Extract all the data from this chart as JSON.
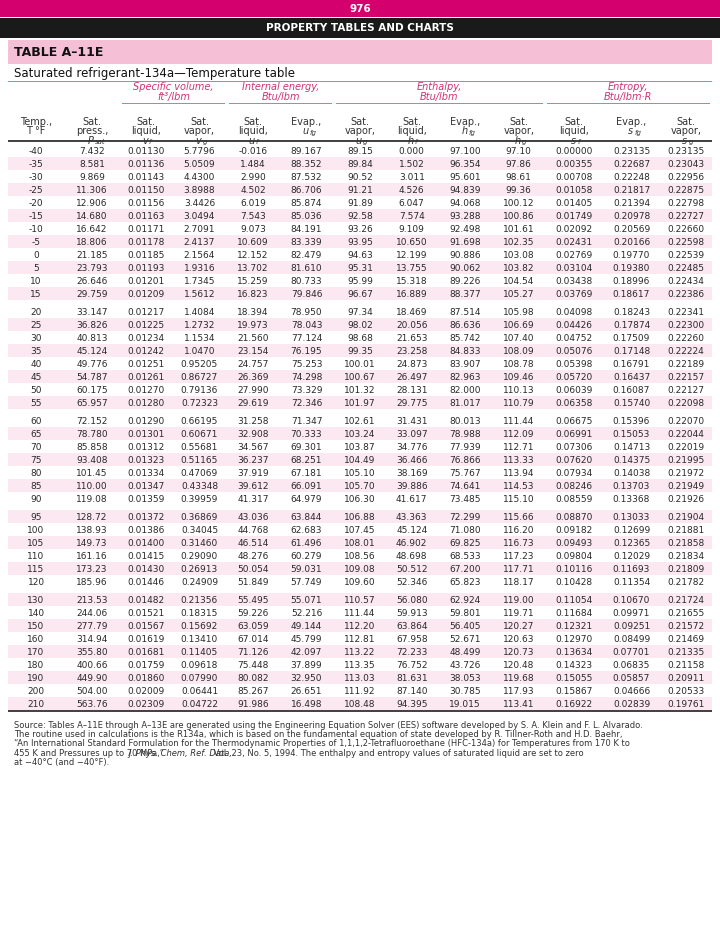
{
  "page_number": "976",
  "header_title": "PROPERTY TABLES AND CHARTS",
  "table_id": "TABLE A–11E",
  "table_subtitle": "Saturated refrigerant-134a—Temperature table",
  "data": [
    [
      "-40",
      "7.432",
      "0.01130",
      "5.7796",
      "-0.016",
      "89.167",
      "89.15",
      "0.000",
      "97.100",
      "97.10",
      "0.00000",
      "0.23135",
      "0.23135"
    ],
    [
      "-35",
      "8.581",
      "0.01136",
      "5.0509",
      "1.484",
      "88.352",
      "89.84",
      "1.502",
      "96.354",
      "97.86",
      "0.00355",
      "0.22687",
      "0.23043"
    ],
    [
      "-30",
      "9.869",
      "0.01143",
      "4.4300",
      "2.990",
      "87.532",
      "90.52",
      "3.011",
      "95.601",
      "98.61",
      "0.00708",
      "0.22248",
      "0.22956"
    ],
    [
      "-25",
      "11.306",
      "0.01150",
      "3.8988",
      "4.502",
      "86.706",
      "91.21",
      "4.526",
      "94.839",
      "99.36",
      "0.01058",
      "0.21817",
      "0.22875"
    ],
    [
      "-20",
      "12.906",
      "0.01156",
      "3.4426",
      "6.019",
      "85.874",
      "91.89",
      "6.047",
      "94.068",
      "100.12",
      "0.01405",
      "0.21394",
      "0.22798"
    ],
    [
      "-15",
      "14.680",
      "0.01163",
      "3.0494",
      "7.543",
      "85.036",
      "92.58",
      "7.574",
      "93.288",
      "100.86",
      "0.01749",
      "0.20978",
      "0.22727"
    ],
    [
      "-10",
      "16.642",
      "0.01171",
      "2.7091",
      "9.073",
      "84.191",
      "93.26",
      "9.109",
      "92.498",
      "101.61",
      "0.02092",
      "0.20569",
      "0.22660"
    ],
    [
      "-5",
      "18.806",
      "0.01178",
      "2.4137",
      "10.609",
      "83.339",
      "93.95",
      "10.650",
      "91.698",
      "102.35",
      "0.02431",
      "0.20166",
      "0.22598"
    ],
    [
      "0",
      "21.185",
      "0.01185",
      "2.1564",
      "12.152",
      "82.479",
      "94.63",
      "12.199",
      "90.886",
      "103.08",
      "0.02769",
      "0.19770",
      "0.22539"
    ],
    [
      "5",
      "23.793",
      "0.01193",
      "1.9316",
      "13.702",
      "81.610",
      "95.31",
      "13.755",
      "90.062",
      "103.82",
      "0.03104",
      "0.19380",
      "0.22485"
    ],
    [
      "10",
      "26.646",
      "0.01201",
      "1.7345",
      "15.259",
      "80.733",
      "95.99",
      "15.318",
      "89.226",
      "104.54",
      "0.03438",
      "0.18996",
      "0.22434"
    ],
    [
      "15",
      "29.759",
      "0.01209",
      "1.5612",
      "16.823",
      "79.846",
      "96.67",
      "16.889",
      "88.377",
      "105.27",
      "0.03769",
      "0.18617",
      "0.22386"
    ],
    [
      "20",
      "33.147",
      "0.01217",
      "1.4084",
      "18.394",
      "78.950",
      "97.34",
      "18.469",
      "87.514",
      "105.98",
      "0.04098",
      "0.18243",
      "0.22341"
    ],
    [
      "25",
      "36.826",
      "0.01225",
      "1.2732",
      "19.973",
      "78.043",
      "98.02",
      "20.056",
      "86.636",
      "106.69",
      "0.04426",
      "0.17874",
      "0.22300"
    ],
    [
      "30",
      "40.813",
      "0.01234",
      "1.1534",
      "21.560",
      "77.124",
      "98.68",
      "21.653",
      "85.742",
      "107.40",
      "0.04752",
      "0.17509",
      "0.22260"
    ],
    [
      "35",
      "45.124",
      "0.01242",
      "1.0470",
      "23.154",
      "76.195",
      "99.35",
      "23.258",
      "84.833",
      "108.09",
      "0.05076",
      "0.17148",
      "0.22224"
    ],
    [
      "40",
      "49.776",
      "0.01251",
      "0.95205",
      "24.757",
      "75.253",
      "100.01",
      "24.873",
      "83.907",
      "108.78",
      "0.05398",
      "0.16791",
      "0.22189"
    ],
    [
      "45",
      "54.787",
      "0.01261",
      "0.86727",
      "26.369",
      "74.298",
      "100.67",
      "26.497",
      "82.963",
      "109.46",
      "0.05720",
      "0.16437",
      "0.22157"
    ],
    [
      "50",
      "60.175",
      "0.01270",
      "0.79136",
      "27.990",
      "73.329",
      "101.32",
      "28.131",
      "82.000",
      "110.13",
      "0.06039",
      "0.16087",
      "0.22127"
    ],
    [
      "55",
      "65.957",
      "0.01280",
      "0.72323",
      "29.619",
      "72.346",
      "101.97",
      "29.775",
      "81.017",
      "110.79",
      "0.06358",
      "0.15740",
      "0.22098"
    ],
    [
      "60",
      "72.152",
      "0.01290",
      "0.66195",
      "31.258",
      "71.347",
      "102.61",
      "31.431",
      "80.013",
      "111.44",
      "0.06675",
      "0.15396",
      "0.22070"
    ],
    [
      "65",
      "78.780",
      "0.01301",
      "0.60671",
      "32.908",
      "70.333",
      "103.24",
      "33.097",
      "78.988",
      "112.09",
      "0.06991",
      "0.15053",
      "0.22044"
    ],
    [
      "70",
      "85.858",
      "0.01312",
      "0.55681",
      "34.567",
      "69.301",
      "103.87",
      "34.776",
      "77.939",
      "112.71",
      "0.07306",
      "0.14713",
      "0.22019"
    ],
    [
      "75",
      "93.408",
      "0.01323",
      "0.51165",
      "36.237",
      "68.251",
      "104.49",
      "36.466",
      "76.866",
      "113.33",
      "0.07620",
      "0.14375",
      "0.21995"
    ],
    [
      "80",
      "101.45",
      "0.01334",
      "0.47069",
      "37.919",
      "67.181",
      "105.10",
      "38.169",
      "75.767",
      "113.94",
      "0.07934",
      "0.14038",
      "0.21972"
    ],
    [
      "85",
      "110.00",
      "0.01347",
      "0.43348",
      "39.612",
      "66.091",
      "105.70",
      "39.886",
      "74.641",
      "114.53",
      "0.08246",
      "0.13703",
      "0.21949"
    ],
    [
      "90",
      "119.08",
      "0.01359",
      "0.39959",
      "41.317",
      "64.979",
      "106.30",
      "41.617",
      "73.485",
      "115.10",
      "0.08559",
      "0.13368",
      "0.21926"
    ],
    [
      "95",
      "128.72",
      "0.01372",
      "0.36869",
      "43.036",
      "63.844",
      "106.88",
      "43.363",
      "72.299",
      "115.66",
      "0.08870",
      "0.13033",
      "0.21904"
    ],
    [
      "100",
      "138.93",
      "0.01386",
      "0.34045",
      "44.768",
      "62.683",
      "107.45",
      "45.124",
      "71.080",
      "116.20",
      "0.09182",
      "0.12699",
      "0.21881"
    ],
    [
      "105",
      "149.73",
      "0.01400",
      "0.31460",
      "46.514",
      "61.496",
      "108.01",
      "46.902",
      "69.825",
      "116.73",
      "0.09493",
      "0.12365",
      "0.21858"
    ],
    [
      "110",
      "161.16",
      "0.01415",
      "0.29090",
      "48.276",
      "60.279",
      "108.56",
      "48.698",
      "68.533",
      "117.23",
      "0.09804",
      "0.12029",
      "0.21834"
    ],
    [
      "115",
      "173.23",
      "0.01430",
      "0.26913",
      "50.054",
      "59.031",
      "109.08",
      "50.512",
      "67.200",
      "117.71",
      "0.10116",
      "0.11693",
      "0.21809"
    ],
    [
      "120",
      "185.96",
      "0.01446",
      "0.24909",
      "51.849",
      "57.749",
      "109.60",
      "52.346",
      "65.823",
      "118.17",
      "0.10428",
      "0.11354",
      "0.21782"
    ],
    [
      "130",
      "213.53",
      "0.01482",
      "0.21356",
      "55.495",
      "55.071",
      "110.57",
      "56.080",
      "62.924",
      "119.00",
      "0.11054",
      "0.10670",
      "0.21724"
    ],
    [
      "140",
      "244.06",
      "0.01521",
      "0.18315",
      "59.226",
      "52.216",
      "111.44",
      "59.913",
      "59.801",
      "119.71",
      "0.11684",
      "0.09971",
      "0.21655"
    ],
    [
      "150",
      "277.79",
      "0.01567",
      "0.15692",
      "63.059",
      "49.144",
      "112.20",
      "63.864",
      "56.405",
      "120.27",
      "0.12321",
      "0.09251",
      "0.21572"
    ],
    [
      "160",
      "314.94",
      "0.01619",
      "0.13410",
      "67.014",
      "45.799",
      "112.81",
      "67.958",
      "52.671",
      "120.63",
      "0.12970",
      "0.08499",
      "0.21469"
    ],
    [
      "170",
      "355.80",
      "0.01681",
      "0.11405",
      "71.126",
      "42.097",
      "113.22",
      "72.233",
      "48.499",
      "120.73",
      "0.13634",
      "0.07701",
      "0.21335"
    ],
    [
      "180",
      "400.66",
      "0.01759",
      "0.09618",
      "75.448",
      "37.899",
      "113.35",
      "76.752",
      "43.726",
      "120.48",
      "0.14323",
      "0.06835",
      "0.21158"
    ],
    [
      "190",
      "449.90",
      "0.01860",
      "0.07990",
      "80.082",
      "32.950",
      "113.03",
      "81.631",
      "38.053",
      "119.68",
      "0.15055",
      "0.05857",
      "0.20911"
    ],
    [
      "200",
      "504.00",
      "0.02009",
      "0.06441",
      "85.267",
      "26.651",
      "111.92",
      "87.140",
      "30.785",
      "117.93",
      "0.15867",
      "0.04666",
      "0.20533"
    ],
    [
      "210",
      "563.76",
      "0.02309",
      "0.04722",
      "91.986",
      "16.498",
      "108.48",
      "94.395",
      "19.015",
      "113.41",
      "0.16922",
      "0.02839",
      "0.19761"
    ]
  ],
  "source_text_parts": [
    {
      "text": "Source: Tables A–11E through A–13E are generated using the Engineering Equation Solver (EES) software developed by S. A. Klein and F. L. Alvarado.",
      "italic": false
    },
    {
      "text": "The routine used in calculations is the R134a, which is based on the fundamental equation of state developed by R. Tillner-Roth and H.D. Baehr,",
      "italic": false
    },
    {
      "text": "“An International Standard Formulation for the Thermodynamic Properties of 1,1,1,2-Tetrafluoroethane (HFC-134a) for Temperatures from 170 K to",
      "italic": false
    },
    {
      "text": "455 K and Pressures up to 70 MPa,” ",
      "italic": false,
      "italic_part": "J. Phys. Chem. Ref. Data,",
      "rest": " Vol. 23, No. 5, 1994. The enthalpy and entropy values of saturated liquid are set to zero"
    },
    {
      "text": "at −40°C (and −40°F).",
      "italic": false
    }
  ],
  "header_magenta": "#d4006e",
  "header_black": "#1a1a1a",
  "table_title_bg": "#f5c0d5",
  "stripe_bg": "#fbe8f0",
  "pink_line": "#e0709a",
  "dark_line": "#444444",
  "text_dark": "#2a2a2a",
  "italic_color": "#cc3377"
}
